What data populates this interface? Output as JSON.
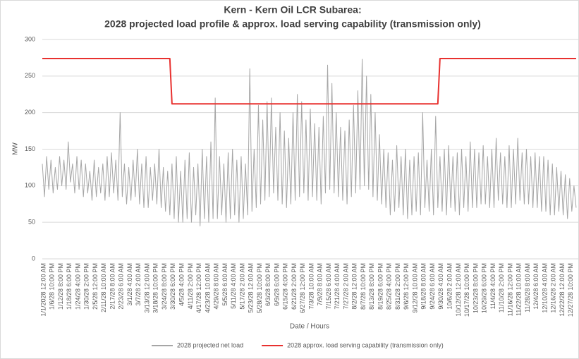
{
  "chart_data": {
    "type": "line",
    "title": "Kern - Kern Oil LCR Subarea:",
    "subtitle": "2028 projected load profile & approx. load serving capability (transmission only)",
    "x_label": "Date / Hours",
    "y_label": "MW",
    "ylim": [
      0,
      300
    ],
    "yticks": [
      0,
      50,
      100,
      150,
      200,
      250,
      300
    ],
    "grid": true,
    "legend": "bottom",
    "categories": [
      "1/1/2028 12:00 AM",
      null,
      null,
      null,
      "1/6/28 10:00 PM",
      null,
      null,
      null,
      "1/12/28 8:00 PM",
      null,
      null,
      null,
      "1/18/28 6:00 PM",
      null,
      null,
      null,
      "1/24/28 4:00 PM",
      null,
      null,
      null,
      "1/30/28 2:00 PM",
      null,
      null,
      null,
      "2/5/28 12:00 PM",
      null,
      null,
      null,
      "2/11/28 10:00 AM",
      null,
      null,
      null,
      "2/17/28 8:00 AM",
      null,
      null,
      null,
      "2/23/28 6:00 AM",
      null,
      null,
      null,
      "3/1/28 4:00 AM",
      null,
      null,
      null,
      "3/7/28 2:00 AM",
      null,
      null,
      null,
      "3/13/28 12:00 AM",
      null,
      null,
      null,
      "3/18/28 10:00 PM",
      null,
      null,
      null,
      "3/24/28 8:00 PM",
      null,
      null,
      null,
      "3/30/28 6:00 PM",
      null,
      null,
      null,
      "4/5/28 4:00 PM",
      null,
      null,
      null,
      "4/11/28 2:00 PM",
      null,
      null,
      null,
      "4/17/28 12:00 PM",
      null,
      null,
      null,
      "4/23/28 10:00 AM",
      null,
      null,
      null,
      "4/29/28 8:00 AM",
      null,
      null,
      null,
      "5/5/28 6:00 AM",
      null,
      null,
      null,
      "5/11/28 4:00 AM",
      null,
      null,
      null,
      "5/17/28 2:00 AM",
      null,
      null,
      null,
      "5/23/28 12:00 AM",
      null,
      null,
      null,
      "5/28/28 10:00 PM",
      null,
      null,
      null,
      "6/3/28 8:00 PM",
      null,
      null,
      null,
      "6/9/28 6:00 PM",
      null,
      null,
      null,
      "6/15/28 4:00 PM",
      null,
      null,
      null,
      "6/21/28 2:00 PM",
      null,
      null,
      null,
      "6/27/28 12:00 PM",
      null,
      null,
      null,
      "7/3/28 10:00 AM",
      null,
      null,
      null,
      "7/9/28 8:00 AM",
      null,
      null,
      null,
      "7/15/28 6:00 AM",
      null,
      null,
      null,
      "7/21/28 4:00 AM",
      null,
      null,
      null,
      "7/27/28 2:00 AM",
      null,
      null,
      null,
      "8/2/28 12:00 AM",
      null,
      null,
      null,
      "8/7/28 10:00 PM",
      null,
      null,
      null,
      "8/13/28 8:00 PM",
      null,
      null,
      null,
      "8/19/28 6:00 PM",
      null,
      null,
      null,
      "8/25/28 4:00 PM",
      null,
      null,
      null,
      "8/31/28 2:00 PM",
      null,
      null,
      null,
      "9/6/28 12:00 PM",
      null,
      null,
      null,
      "9/12/28 10:00 AM",
      null,
      null,
      null,
      "9/18/28 8:00 AM",
      null,
      null,
      null,
      "9/24/28 6:00 AM",
      null,
      null,
      null,
      "9/30/28 4:00 AM",
      null,
      null,
      null,
      "10/6/28 2:00 AM",
      null,
      null,
      null,
      "10/12/28 12:00 AM",
      null,
      null,
      null,
      "10/17/28 10:00 PM",
      null,
      null,
      null,
      "10/23/28 8:00 PM",
      null,
      null,
      null,
      "10/29/28 6:00 PM",
      null,
      null,
      null,
      "11/4/28 4:00 PM",
      null,
      null,
      null,
      "11/10/28 2:00 PM",
      null,
      null,
      null,
      "11/16/28 12:00 PM",
      null,
      null,
      null,
      "11/22/28 10:00 AM",
      null,
      null,
      null,
      "11/28/28 8:00 AM",
      null,
      null,
      null,
      "12/4/28 6:00 AM",
      null,
      null,
      null,
      "12/10/28 4:00 AM",
      null,
      null,
      null,
      "12/16/28 2:00 AM",
      null,
      null,
      null,
      "12/22/28 12:00 AM",
      null,
      null,
      null,
      "12/27/28 10:00 PM",
      null,
      null,
      null
    ],
    "series": [
      {
        "name": "2028 projected net load",
        "color": "#a6a6a6",
        "values": [
          130,
          85,
          140,
          95,
          135,
          90,
          125,
          95,
          140,
          100,
          135,
          95,
          160,
          105,
          130,
          90,
          140,
          95,
          135,
          85,
          130,
          90,
          120,
          80,
          135,
          85,
          125,
          90,
          130,
          80,
          140,
          85,
          145,
          90,
          135,
          80,
          200,
          85,
          130,
          75,
          125,
          80,
          135,
          85,
          150,
          75,
          130,
          70,
          140,
          70,
          125,
          80,
          130,
          75,
          150,
          70,
          125,
          65,
          120,
          60,
          130,
          55,
          140,
          50,
          120,
          50,
          135,
          55,
          145,
          50,
          125,
          60,
          130,
          45,
          150,
          55,
          140,
          50,
          160,
          55,
          220,
          55,
          140,
          60,
          130,
          50,
          145,
          55,
          150,
          60,
          135,
          50,
          140,
          55,
          130,
          60,
          260,
          65,
          150,
          70,
          210,
          75,
          190,
          80,
          215,
          85,
          220,
          90,
          180,
          80,
          200,
          75,
          175,
          70,
          165,
          75,
          200,
          80,
          225,
          85,
          215,
          90,
          190,
          80,
          205,
          85,
          185,
          80,
          180,
          75,
          195,
          90,
          265,
          95,
          240,
          90,
          200,
          85,
          180,
          80,
          175,
          75,
          190,
          85,
          210,
          90,
          230,
          95,
          273,
          100,
          250,
          95,
          225,
          85,
          200,
          80,
          170,
          75,
          150,
          70,
          145,
          60,
          135,
          65,
          155,
          70,
          140,
          60,
          150,
          55,
          135,
          60,
          140,
          65,
          145,
          60,
          200,
          70,
          135,
          65,
          150,
          60,
          195,
          70,
          140,
          65,
          150,
          60,
          155,
          70,
          140,
          65,
          145,
          60,
          150,
          70,
          140,
          65,
          160,
          70,
          150,
          70,
          145,
          75,
          155,
          75,
          140,
          70,
          150,
          70,
          165,
          80,
          145,
          75,
          140,
          70,
          155,
          70,
          150,
          75,
          165,
          80,
          145,
          75,
          150,
          75,
          140,
          70,
          145,
          70,
          140,
          65,
          140,
          65,
          135,
          60,
          130,
          60,
          125,
          65,
          120,
          60,
          115,
          55,
          110,
          65,
          100,
          70
        ]
      },
      {
        "name": "2028 approx. load serving  capability (transmission only)",
        "color": "#e8312f",
        "values": [
          274,
          274,
          274,
          274,
          274,
          274,
          274,
          274,
          274,
          274,
          274,
          274,
          274,
          274,
          274,
          274,
          274,
          274,
          274,
          274,
          274,
          274,
          274,
          274,
          274,
          274,
          274,
          274,
          274,
          274,
          274,
          274,
          274,
          274,
          274,
          274,
          274,
          274,
          274,
          274,
          274,
          274,
          274,
          274,
          274,
          274,
          274,
          274,
          274,
          274,
          274,
          274,
          274,
          274,
          274,
          274,
          274,
          274,
          274,
          274,
          212,
          212,
          212,
          212,
          212,
          212,
          212,
          212,
          212,
          212,
          212,
          212,
          212,
          212,
          212,
          212,
          212,
          212,
          212,
          212,
          212,
          212,
          212,
          212,
          212,
          212,
          212,
          212,
          212,
          212,
          212,
          212,
          212,
          212,
          212,
          212,
          212,
          212,
          212,
          212,
          212,
          212,
          212,
          212,
          212,
          212,
          212,
          212,
          212,
          212,
          212,
          212,
          212,
          212,
          212,
          212,
          212,
          212,
          212,
          212,
          212,
          212,
          212,
          212,
          212,
          212,
          212,
          212,
          212,
          212,
          212,
          212,
          212,
          212,
          212,
          212,
          212,
          212,
          212,
          212,
          212,
          212,
          212,
          212,
          212,
          212,
          212,
          212,
          212,
          212,
          212,
          212,
          212,
          212,
          212,
          212,
          212,
          212,
          212,
          212,
          212,
          212,
          212,
          212,
          212,
          212,
          212,
          212,
          212,
          212,
          212,
          212,
          212,
          212,
          212,
          212,
          212,
          212,
          212,
          212,
          212,
          212,
          212,
          212,
          274,
          274,
          274,
          274,
          274,
          274,
          274,
          274,
          274,
          274,
          274,
          274,
          274,
          274,
          274,
          274,
          274,
          274,
          274,
          274,
          274,
          274,
          274,
          274,
          274,
          274,
          274,
          274,
          274,
          274,
          274,
          274,
          274,
          274,
          274,
          274,
          274,
          274,
          274,
          274,
          274,
          274,
          274,
          274,
          274,
          274,
          274,
          274,
          274,
          274,
          274,
          274,
          274,
          274,
          274,
          274,
          274,
          274,
          274,
          274,
          274,
          274,
          274,
          274
        ]
      }
    ]
  }
}
